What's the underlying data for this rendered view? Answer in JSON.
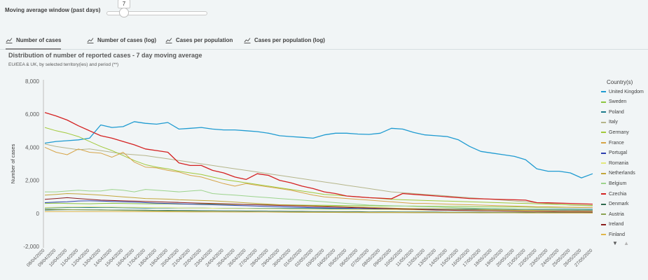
{
  "controls": {
    "moving_average_label": "Moving average window (past days)",
    "moving_average_value": "7"
  },
  "tabs": [
    {
      "label": "Number of cases",
      "active": true
    },
    {
      "label": "Number of cases (log)",
      "active": false
    },
    {
      "label": "Cases per population",
      "active": false
    },
    {
      "label": "Cases per population (log)",
      "active": false
    }
  ],
  "header": {
    "title": "Distribution of number of reported cases - 7 day moving average",
    "subtitle": "EU/EEA & UK, by selected territory(ies) and period (**)"
  },
  "legend": {
    "title": "Country(s)"
  },
  "chart_data": {
    "type": "line",
    "title": "",
    "ylabel": "Number of cases",
    "xlabel": "",
    "ylim": [
      -2000,
      8000
    ],
    "yticks": [
      "8,000",
      "6,000",
      "4,000",
      "2,000",
      "0",
      "-2,000"
    ],
    "ytick_values": [
      8000,
      6000,
      4000,
      2000,
      0,
      -2000
    ],
    "grid": false,
    "legend_position": "right",
    "categories": [
      "08/04/2020",
      "09/04/2020",
      "10/04/2020",
      "11/04/2020",
      "12/04/2020",
      "13/04/2020",
      "14/04/2020",
      "15/04/2020",
      "16/04/2020",
      "17/04/2020",
      "18/04/2020",
      "19/04/2020",
      "20/04/2020",
      "21/04/2020",
      "22/04/2020",
      "23/04/2020",
      "24/04/2020",
      "25/04/2020",
      "26/04/2020",
      "27/04/2020",
      "28/04/2020",
      "29/04/2020",
      "30/04/2020",
      "01/05/2020",
      "02/05/2020",
      "03/05/2020",
      "04/05/2020",
      "05/05/2020",
      "06/05/2020",
      "07/05/2020",
      "08/05/2020",
      "09/05/2020",
      "10/05/2020",
      "11/05/2020",
      "12/05/2020",
      "13/05/2020",
      "14/05/2020",
      "15/05/2020",
      "16/05/2020",
      "17/05/2020",
      "18/05/2020",
      "19/05/2020",
      "20/05/2020",
      "21/05/2020",
      "22/05/2020",
      "23/05/2020",
      "24/05/2020",
      "25/05/2020",
      "26/05/2020",
      "27/05/2020"
    ],
    "series": [
      {
        "name": "United Kingdom",
        "color": "#1f9bd1",
        "values": [
          4250,
          4350,
          4400,
          4450,
          4550,
          5350,
          5200,
          5250,
          5550,
          5450,
          5400,
          5500,
          5100,
          5150,
          5200,
          5100,
          5050,
          5050,
          5000,
          4950,
          4850,
          4700,
          4650,
          4600,
          4550,
          4750,
          4850,
          4850,
          4800,
          4780,
          4850,
          5150,
          5100,
          4900,
          4750,
          4700,
          4650,
          4450,
          4050,
          3750,
          3650,
          3550,
          3450,
          3250,
          2700,
          2550,
          2550,
          2450,
          2150,
          2400
        ]
      },
      {
        "name": "Sweden",
        "color": "#8cc640",
        "values": [
          600,
          620,
          600,
          590,
          580,
          600,
          610,
          600,
          590,
          580,
          570,
          570,
          560,
          560,
          570,
          560,
          550,
          540,
          540,
          530,
          520,
          520,
          510,
          500,
          490,
          490,
          480,
          470,
          470,
          460,
          450,
          450,
          440,
          440,
          430,
          430,
          420,
          420,
          410,
          400,
          400,
          390,
          390,
          380,
          370,
          370,
          360,
          360,
          350,
          350
        ]
      },
      {
        "name": "Poland",
        "color": "#1d7a8c",
        "values": [
          330,
          340,
          350,
          360,
          350,
          360,
          350,
          340,
          330,
          320,
          320,
          320,
          320,
          320,
          320,
          310,
          310,
          310,
          300,
          300,
          300,
          300,
          300,
          300,
          300,
          290,
          290,
          290,
          290,
          280,
          280,
          280,
          280,
          280,
          280,
          270,
          270,
          270,
          270,
          270,
          270,
          260,
          260,
          260,
          260,
          260,
          260,
          260,
          250,
          250
        ]
      },
      {
        "name": "Italy",
        "color": "#b5b58a",
        "values": [
          4200,
          4050,
          3950,
          3850,
          3900,
          3800,
          3700,
          3600,
          3550,
          3500,
          3400,
          3300,
          3200,
          3100,
          3000,
          2900,
          2800,
          2700,
          2600,
          2500,
          2400,
          2300,
          2200,
          2100,
          2000,
          1900,
          1800,
          1700,
          1600,
          1500,
          1400,
          1300,
          1250,
          1200,
          1150,
          1100,
          1050,
          1000,
          950,
          900,
          850,
          800,
          750,
          700,
          650,
          600,
          550,
          500,
          480,
          450
        ]
      },
      {
        "name": "Germany",
        "color": "#a2c93a",
        "values": [
          5200,
          5000,
          4850,
          4650,
          4350,
          4050,
          3800,
          3500,
          3200,
          2950,
          2800,
          2700,
          2550,
          2450,
          2350,
          2200,
          2050,
          1950,
          1850,
          1750,
          1650,
          1550,
          1450,
          1350,
          1250,
          1150,
          1100,
          1050,
          1000,
          950,
          900,
          850,
          820,
          800,
          780,
          760,
          740,
          720,
          700,
          680,
          660,
          640,
          620,
          600,
          580,
          560,
          540,
          520,
          500,
          480
        ]
      },
      {
        "name": "France",
        "color": "#d6a447",
        "values": [
          4000,
          3700,
          3550,
          3900,
          3700,
          3650,
          3400,
          3700,
          3100,
          2800,
          2750,
          2600,
          2500,
          2300,
          2200,
          2000,
          1800,
          1650,
          1800,
          1700,
          1600,
          1500,
          1400,
          1250,
          1100,
          1000,
          950,
          900,
          850,
          800,
          750,
          700,
          650,
          600,
          600,
          580,
          560,
          540,
          520,
          500,
          480,
          460,
          440,
          420,
          400,
          400,
          380,
          370,
          360,
          350
        ]
      },
      {
        "name": "Portugal",
        "color": "#2d3fb0",
        "values": [
          650,
          680,
          700,
          750,
          760,
          740,
          720,
          700,
          680,
          650,
          620,
          600,
          580,
          560,
          540,
          520,
          500,
          480,
          460,
          440,
          420,
          400,
          380,
          360,
          340,
          330,
          320,
          310,
          300,
          290,
          280,
          270,
          260,
          250,
          250,
          240,
          240,
          230,
          230,
          220,
          220,
          210,
          210,
          200,
          200,
          200,
          190,
          190,
          180,
          180
        ]
      },
      {
        "name": "Romania",
        "color": "#e3e87a",
        "values": [
          350,
          370,
          380,
          390,
          400,
          390,
          380,
          370,
          360,
          350,
          340,
          340,
          330,
          320,
          320,
          310,
          300,
          300,
          290,
          280,
          280,
          270,
          260,
          260,
          250,
          250,
          240,
          240,
          230,
          230,
          220,
          220,
          210,
          210,
          200,
          200,
          190,
          190,
          180,
          180,
          170,
          170,
          160,
          160,
          150,
          150,
          150,
          140,
          140,
          140
        ]
      },
      {
        "name": "Netherlands",
        "color": "#c3a63a",
        "values": [
          1100,
          1150,
          1200,
          1180,
          1150,
          1100,
          1050,
          1000,
          950,
          900,
          880,
          860,
          820,
          800,
          780,
          760,
          720,
          680,
          640,
          600,
          560,
          520,
          500,
          480,
          460,
          440,
          420,
          400,
          380,
          360,
          340,
          320,
          300,
          290,
          280,
          270,
          260,
          250,
          240,
          230,
          220,
          210,
          200,
          190,
          180,
          170,
          160,
          150,
          150,
          140
        ]
      },
      {
        "name": "Belgium",
        "color": "#9cd38c",
        "values": [
          1300,
          1300,
          1350,
          1400,
          1350,
          1350,
          1450,
          1400,
          1300,
          1450,
          1400,
          1350,
          1300,
          1350,
          1400,
          1200,
          1150,
          1100,
          1050,
          1000,
          950,
          900,
          850,
          800,
          750,
          700,
          650,
          600,
          550,
          500,
          480,
          460,
          440,
          420,
          400,
          380,
          360,
          340,
          320,
          300,
          290,
          280,
          270,
          260,
          250,
          240,
          230,
          220,
          210,
          200
        ]
      },
      {
        "name": "Czechia",
        "color": "#d42121",
        "values": [
          6100,
          5900,
          5650,
          5300,
          5000,
          4700,
          4550,
          4350,
          4150,
          3900,
          3800,
          3700,
          3050,
          2900,
          2900,
          2600,
          2450,
          2200,
          2050,
          2400,
          2300,
          2000,
          1850,
          1650,
          1500,
          1300,
          1200,
          1050,
          1000,
          950,
          920,
          880,
          1200,
          1150,
          1100,
          1050,
          1000,
          950,
          900,
          880,
          860,
          840,
          820,
          800,
          650,
          640,
          620,
          600,
          580,
          560
        ]
      },
      {
        "name": "Denmark",
        "color": "#2f6b4f",
        "values": [
          200,
          210,
          220,
          220,
          210,
          210,
          200,
          200,
          190,
          190,
          180,
          180,
          170,
          170,
          160,
          160,
          150,
          150,
          140,
          140,
          130,
          130,
          120,
          120,
          110,
          110,
          100,
          100,
          100,
          90,
          90,
          90,
          80,
          80,
          80,
          80,
          70,
          70,
          70,
          70,
          60,
          60,
          60,
          60,
          50,
          50,
          50,
          50,
          50,
          50
        ]
      },
      {
        "name": "Austria",
        "color": "#8ba352",
        "values": [
          250,
          240,
          230,
          220,
          210,
          200,
          190,
          180,
          170,
          160,
          150,
          140,
          130,
          120,
          110,
          100,
          95,
          90,
          85,
          80,
          75,
          70,
          65,
          60,
          58,
          56,
          54,
          52,
          50,
          48,
          46,
          44,
          42,
          40,
          40,
          38,
          36,
          34,
          32,
          30,
          30,
          28,
          28,
          26,
          26,
          24,
          24,
          22,
          22,
          20
        ]
      },
      {
        "name": "Ireland",
        "color": "#8b1d1d",
        "values": [
          850,
          900,
          950,
          900,
          850,
          800,
          780,
          760,
          740,
          720,
          700,
          680,
          660,
          640,
          620,
          600,
          580,
          560,
          540,
          520,
          500,
          480,
          460,
          440,
          420,
          400,
          380,
          360,
          340,
          320,
          300,
          280,
          260,
          240,
          220,
          200,
          190,
          180,
          170,
          160,
          150,
          140,
          130,
          120,
          110,
          100,
          95,
          90,
          85,
          80
        ]
      },
      {
        "name": "Finland",
        "color": "#e0b64a",
        "values": [
          100,
          105,
          110,
          110,
          108,
          106,
          104,
          102,
          100,
          98,
          96,
          94,
          92,
          90,
          88,
          86,
          84,
          82,
          80,
          78,
          76,
          74,
          72,
          70,
          68,
          66,
          64,
          62,
          60,
          58,
          56,
          54,
          52,
          50,
          48,
          46,
          44,
          42,
          40,
          38,
          36,
          34,
          32,
          30,
          28,
          26,
          24,
          22,
          20,
          18
        ]
      }
    ]
  }
}
